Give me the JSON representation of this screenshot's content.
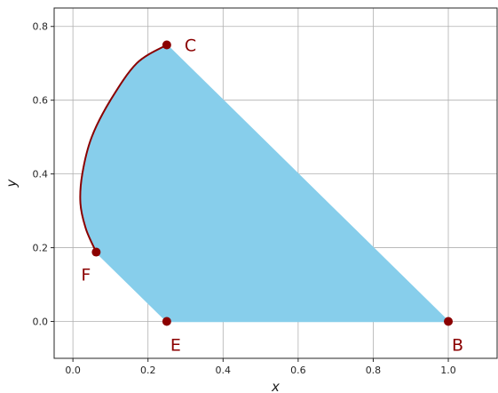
{
  "chart_data": {
    "type": "scatter",
    "title": "",
    "xlabel": "x",
    "ylabel": "y",
    "xlim": [
      -0.05,
      1.13
    ],
    "ylim": [
      -0.1,
      0.85
    ],
    "xticks": [
      0.0,
      0.2,
      0.4,
      0.6,
      0.8,
      1.0
    ],
    "yticks": [
      0.0,
      0.2,
      0.4,
      0.6,
      0.8
    ],
    "xtick_labels": [
      "0.0",
      "0.2",
      "0.4",
      "0.6",
      "0.8",
      "1.0"
    ],
    "ytick_labels": [
      "0.0",
      "0.2",
      "0.4",
      "0.6",
      "0.8"
    ],
    "grid": true,
    "colors": {
      "region": "#87ceeb",
      "curve": "#8b0000",
      "points": "#8b0000",
      "grid": "#b0b0b0"
    },
    "region": {
      "vertices": [
        {
          "x": 0.25,
          "y": 0.75
        },
        {
          "x": 0.17,
          "y": 0.7
        },
        {
          "x": 0.1,
          "y": 0.6
        },
        {
          "x": 0.05,
          "y": 0.5
        },
        {
          "x": 0.025,
          "y": 0.4
        },
        {
          "x": 0.02,
          "y": 0.32
        },
        {
          "x": 0.035,
          "y": 0.25
        },
        {
          "x": 0.062,
          "y": 0.188
        },
        {
          "x": 0.25,
          "y": 0.0
        },
        {
          "x": 1.0,
          "y": 0.0
        }
      ]
    },
    "curve": {
      "points": [
        {
          "x": 0.25,
          "y": 0.75
        },
        {
          "x": 0.17,
          "y": 0.7
        },
        {
          "x": 0.1,
          "y": 0.6
        },
        {
          "x": 0.05,
          "y": 0.5
        },
        {
          "x": 0.025,
          "y": 0.4
        },
        {
          "x": 0.02,
          "y": 0.32
        },
        {
          "x": 0.035,
          "y": 0.25
        },
        {
          "x": 0.062,
          "y": 0.188
        }
      ]
    },
    "labeled_points": [
      {
        "label": "C",
        "x": 0.25,
        "y": 0.75,
        "label_pos": "right"
      },
      {
        "label": "F",
        "x": 0.062,
        "y": 0.188,
        "label_pos": "below-left"
      },
      {
        "label": "E",
        "x": 0.25,
        "y": 0.0,
        "label_pos": "below-right"
      },
      {
        "label": "B",
        "x": 1.0,
        "y": 0.0,
        "label_pos": "below-right"
      }
    ]
  }
}
